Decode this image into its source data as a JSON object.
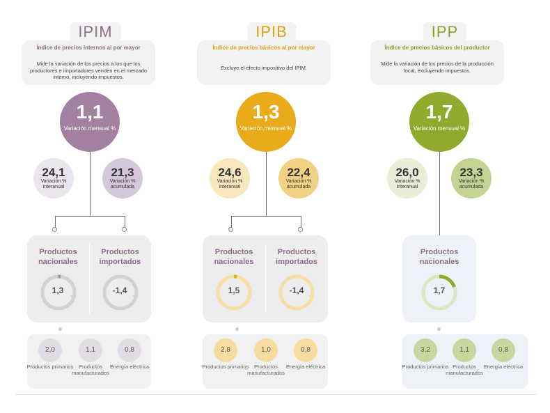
{
  "ipim": {
    "title": "IPIM",
    "subtitle": "Índice de precios internos al por mayor",
    "description": "Mide la variación de los precios a los que los productores e importadores venden en el mercado interno, incluyendo impuestos.",
    "main_value": "1,1",
    "main_label": "Variación mensual %",
    "interanual_value": "24,1",
    "interanual_label": "Variación % interanual",
    "acumulada_value": "21,3",
    "acumulada_label": "Variación % acumulada",
    "nacionales_label": "Productos nacionales",
    "nacionales_value": "1,3",
    "importados_label": "Productos importados",
    "importados_value": "-1,4",
    "primarios_value": "2,0",
    "primarios_label": "Productos primarios",
    "manufacturados_value": "1,1",
    "manufacturados_label": "Productos manufacturados",
    "energia_value": "0,8",
    "energia_label": "Energía eléctrica",
    "colors": {
      "main": "#a1819f",
      "title": "#8d6e8b",
      "light": "#e4dce6",
      "mid": "#d2c6d6"
    }
  },
  "ipib": {
    "title": "IPIB",
    "subtitle": "Índice de precios básicos al por mayor",
    "description": "Excluye el efecto impositivo del IPIM.",
    "main_value": "1,3",
    "main_label": "Variación mensual %",
    "interanual_value": "24,6",
    "interanual_label": "Variación % interanual",
    "acumulada_value": "22,4",
    "acumulada_label": "Variación % acumulada",
    "nacionales_label": "Productos nacionales",
    "nacionales_value": "1,5",
    "importados_label": "Productos importados",
    "importados_value": "-1,4",
    "primarios_value": "2,8",
    "primarios_label": "Productos primarios",
    "manufacturados_value": "1,0",
    "manufacturados_label": "Productos manufacturados",
    "energia_value": "0,8",
    "energia_label": "Energía eléctrica",
    "colors": {
      "main": "#e9ab1a",
      "title": "#e0a111",
      "light": "#f8e8c3",
      "mid": "#f2d48a"
    }
  },
  "ipp": {
    "title": "IPP",
    "subtitle": "Índice de precios básicos del productor",
    "description": "Mide la variación de los precios de la producción local, excluyendo impuestos.",
    "main_value": "1,7",
    "main_label": "Variación mensual %",
    "interanual_value": "26,0",
    "interanual_label": "Variación % interanual",
    "acumulada_value": "23,3",
    "acumulada_label": "Variación % acumulada",
    "nacionales_label": "Productos nacionales",
    "nacionales_value": "1,7",
    "primarios_value": "3,2",
    "primarios_label": "Productos primarios",
    "manufacturados_value": "1,1",
    "manufacturados_label": "Productos manufacturados",
    "energia_value": "0,8",
    "energia_label": "Energía eléctrica",
    "colors": {
      "main": "#8faa2d",
      "title": "#86a426",
      "light": "#e6edd3",
      "mid": "#c5d595"
    }
  }
}
